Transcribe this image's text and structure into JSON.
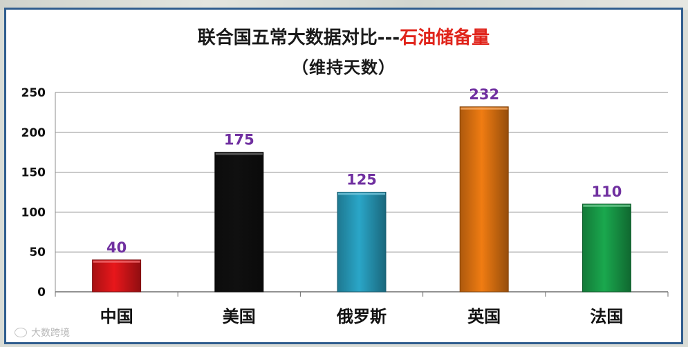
{
  "chart_data": {
    "type": "bar",
    "title_main": "联合国五常大数据对比---",
    "title_accent": "石油储备量",
    "subtitle": "（维持天数）",
    "categories": [
      "中国",
      "美国",
      "俄罗斯",
      "英国",
      "法国"
    ],
    "values": [
      40,
      175,
      125,
      232,
      110
    ],
    "data_labels": [
      "40",
      "175",
      "125",
      "232",
      "110"
    ],
    "bar_colors": [
      "#e8171b",
      "#101010",
      "#2aa6c8",
      "#f07c12",
      "#1aa84e"
    ],
    "data_label_color": "#7030a0",
    "title_accent_color": "#e0241b",
    "yticks": [
      0,
      50,
      100,
      150,
      200,
      250
    ],
    "ylim": [
      0,
      250
    ],
    "grid": true,
    "legend": "none"
  },
  "watermark": {
    "text": "大数跨境",
    "icon": "weibo-eye-icon"
  }
}
